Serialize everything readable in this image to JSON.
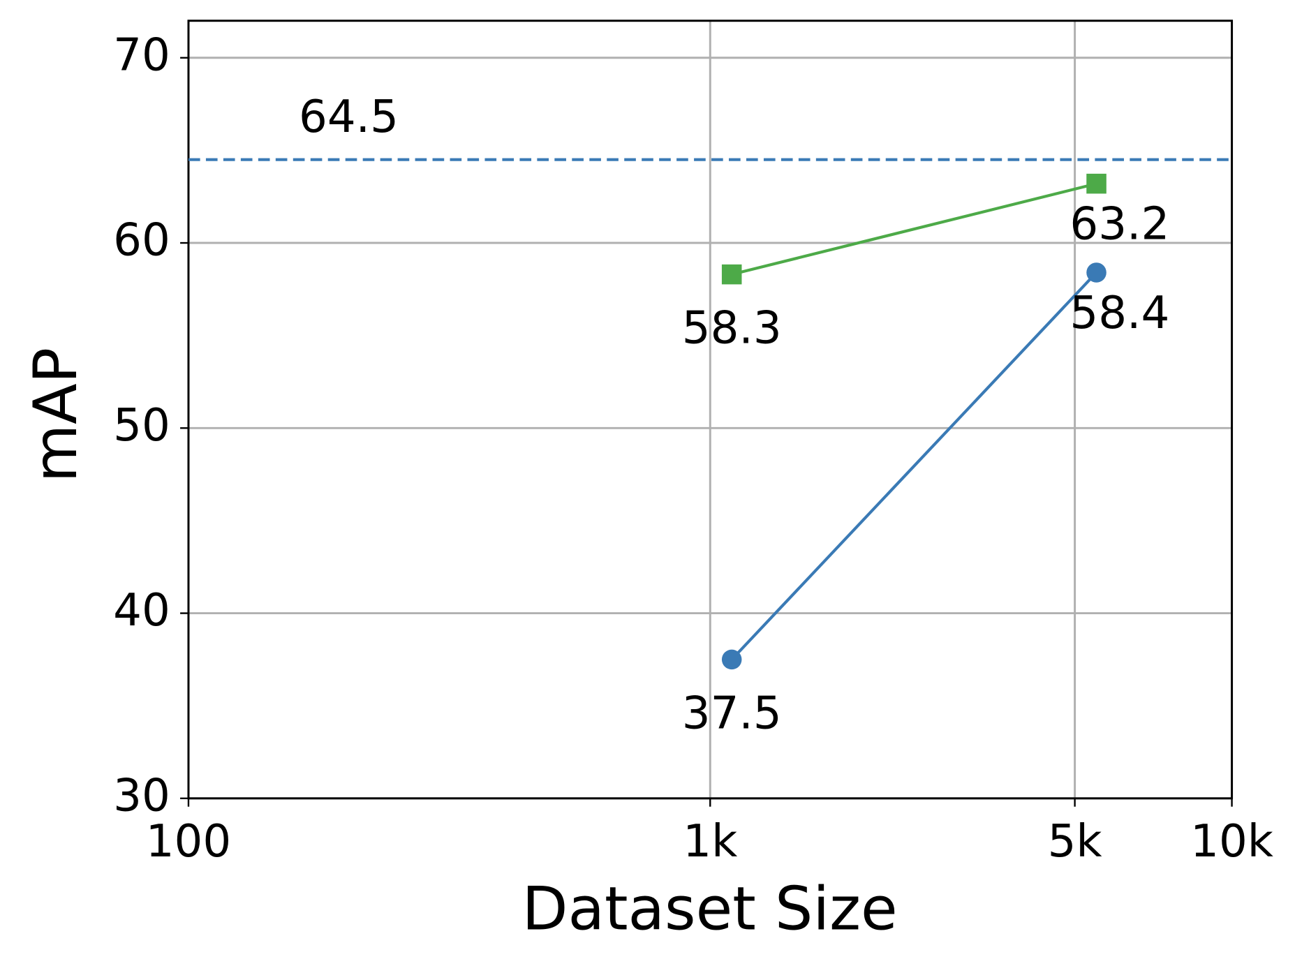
{
  "chart_data": {
    "type": "line",
    "x_label": "Dataset Size",
    "y_label": "mAP",
    "x": [
      1100,
      5500
    ],
    "xscale": "log",
    "xlim": [
      100,
      10000
    ],
    "xticks": [
      100,
      {
        "value": 1000,
        "label": "1k"
      },
      {
        "value": 5000,
        "label": "5k"
      },
      {
        "value": 10000,
        "label": "10k"
      }
    ],
    "ylim": [
      30,
      72
    ],
    "yticks": [
      30,
      40,
      50,
      60,
      70
    ],
    "grid": true,
    "series": [
      {
        "color": "#3a7ab5",
        "marker": "circle",
        "values": [
          37.5,
          58.4
        ]
      },
      {
        "color": "#4daa48",
        "marker": "square",
        "values": [
          58.3,
          63.2
        ]
      }
    ],
    "hlines": [
      {
        "value": 64.5,
        "color": "#3a7ab5",
        "style": "dashed"
      }
    ]
  }
}
